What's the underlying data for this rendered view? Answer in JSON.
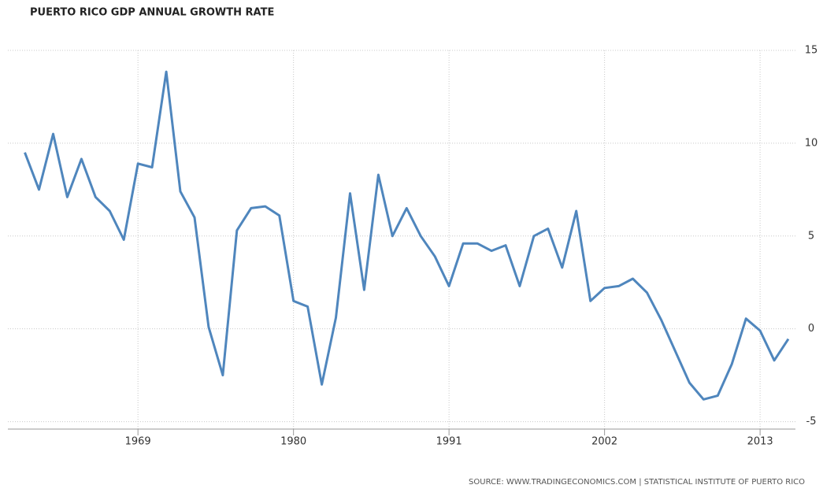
{
  "chart_data": {
    "type": "line",
    "title": "PUERTO RICO GDP ANNUAL GROWTH RATE",
    "source": "SOURCE: WWW.TRADINGECONOMICS.COM | STATISTICAL INSTITUTE OF PUERTO RICO",
    "x": [
      1961,
      1962,
      1963,
      1964,
      1965,
      1966,
      1967,
      1968,
      1969,
      1970,
      1971,
      1972,
      1973,
      1974,
      1975,
      1976,
      1977,
      1978,
      1979,
      1980,
      1981,
      1982,
      1983,
      1984,
      1985,
      1986,
      1987,
      1988,
      1989,
      1990,
      1991,
      1992,
      1993,
      1994,
      1995,
      1996,
      1997,
      1998,
      1999,
      2000,
      2001,
      2002,
      2003,
      2004,
      2005,
      2006,
      2007,
      2008,
      2009,
      2010,
      2011,
      2012,
      2013,
      2014,
      2015
    ],
    "series": [
      {
        "name": "GDP Annual Growth Rate",
        "color": "#4f86bd",
        "values": [
          9.5,
          7.5,
          10.5,
          7.1,
          9.15,
          7.1,
          6.35,
          4.8,
          8.9,
          8.7,
          13.85,
          7.4,
          6.0,
          0.1,
          -2.5,
          5.3,
          6.5,
          6.6,
          6.1,
          1.5,
          1.2,
          -3.0,
          0.6,
          7.3,
          2.1,
          8.3,
          5.0,
          6.5,
          5.0,
          3.9,
          2.3,
          4.6,
          4.6,
          4.2,
          4.5,
          2.3,
          5.0,
          5.4,
          3.3,
          6.35,
          1.5,
          2.2,
          2.3,
          2.7,
          1.95,
          0.5,
          -1.2,
          -2.9,
          -3.8,
          -3.6,
          -1.9,
          0.55,
          -0.1,
          -1.7,
          -0.55
        ]
      }
    ],
    "xlim": [
      1959.8,
      2015.5
    ],
    "xticks": [
      1969,
      1980,
      1991,
      2002,
      2013
    ],
    "ylim": [
      -5.4,
      15
    ],
    "yticks": [
      -5,
      0,
      5,
      10,
      15
    ],
    "grid": true
  }
}
